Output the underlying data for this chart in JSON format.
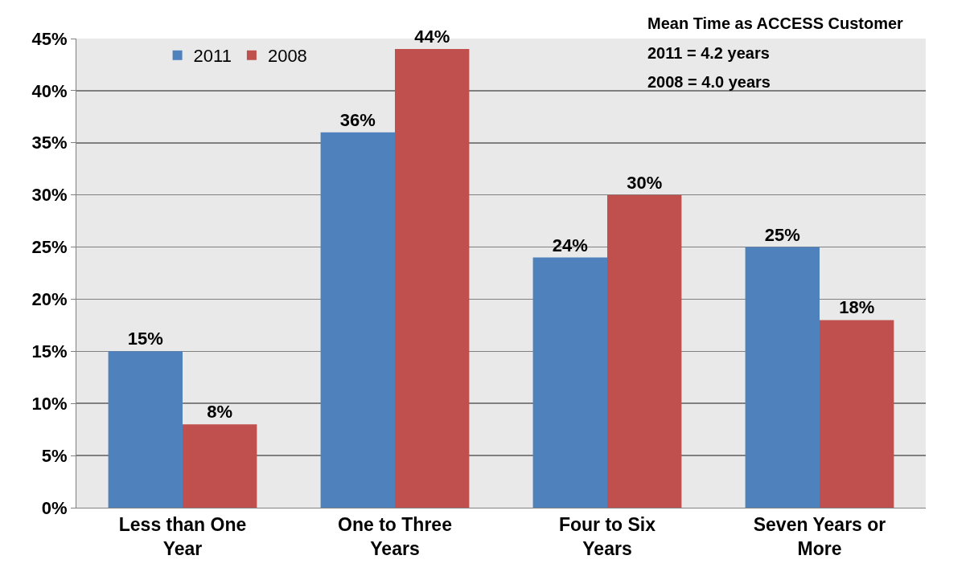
{
  "chart_data": {
    "type": "bar",
    "categories": [
      "Less than One Year",
      "One to Three Years",
      "Four to Six Years",
      "Seven Years or More"
    ],
    "series": [
      {
        "name": "2011",
        "color": "#4f81bd",
        "values": [
          15,
          36,
          24,
          25
        ],
        "value_labels": [
          "15%",
          "36%",
          "24%",
          "25%"
        ]
      },
      {
        "name": "2008",
        "color": "#c0504d",
        "values": [
          8,
          44,
          30,
          18
        ],
        "value_labels": [
          "8%",
          "44%",
          "30%",
          "18%"
        ]
      }
    ],
    "ylim": [
      0,
      45
    ],
    "yticks": [
      {
        "value": 0,
        "label": "0%"
      },
      {
        "value": 5,
        "label": "5%"
      },
      {
        "value": 10,
        "label": "10%"
      },
      {
        "value": 15,
        "label": "15%"
      },
      {
        "value": 20,
        "label": "20%"
      },
      {
        "value": 25,
        "label": "25%"
      },
      {
        "value": 30,
        "label": "30%"
      },
      {
        "value": 35,
        "label": "35%"
      },
      {
        "value": 40,
        "label": "40%"
      },
      {
        "value": 45,
        "label": "45%"
      }
    ],
    "grid": "y",
    "legend": "top left",
    "annotations": [
      "Mean Time as ACCESS Customer",
      "2011 = 4.2 years",
      "2008 = 4.0 years"
    ]
  }
}
